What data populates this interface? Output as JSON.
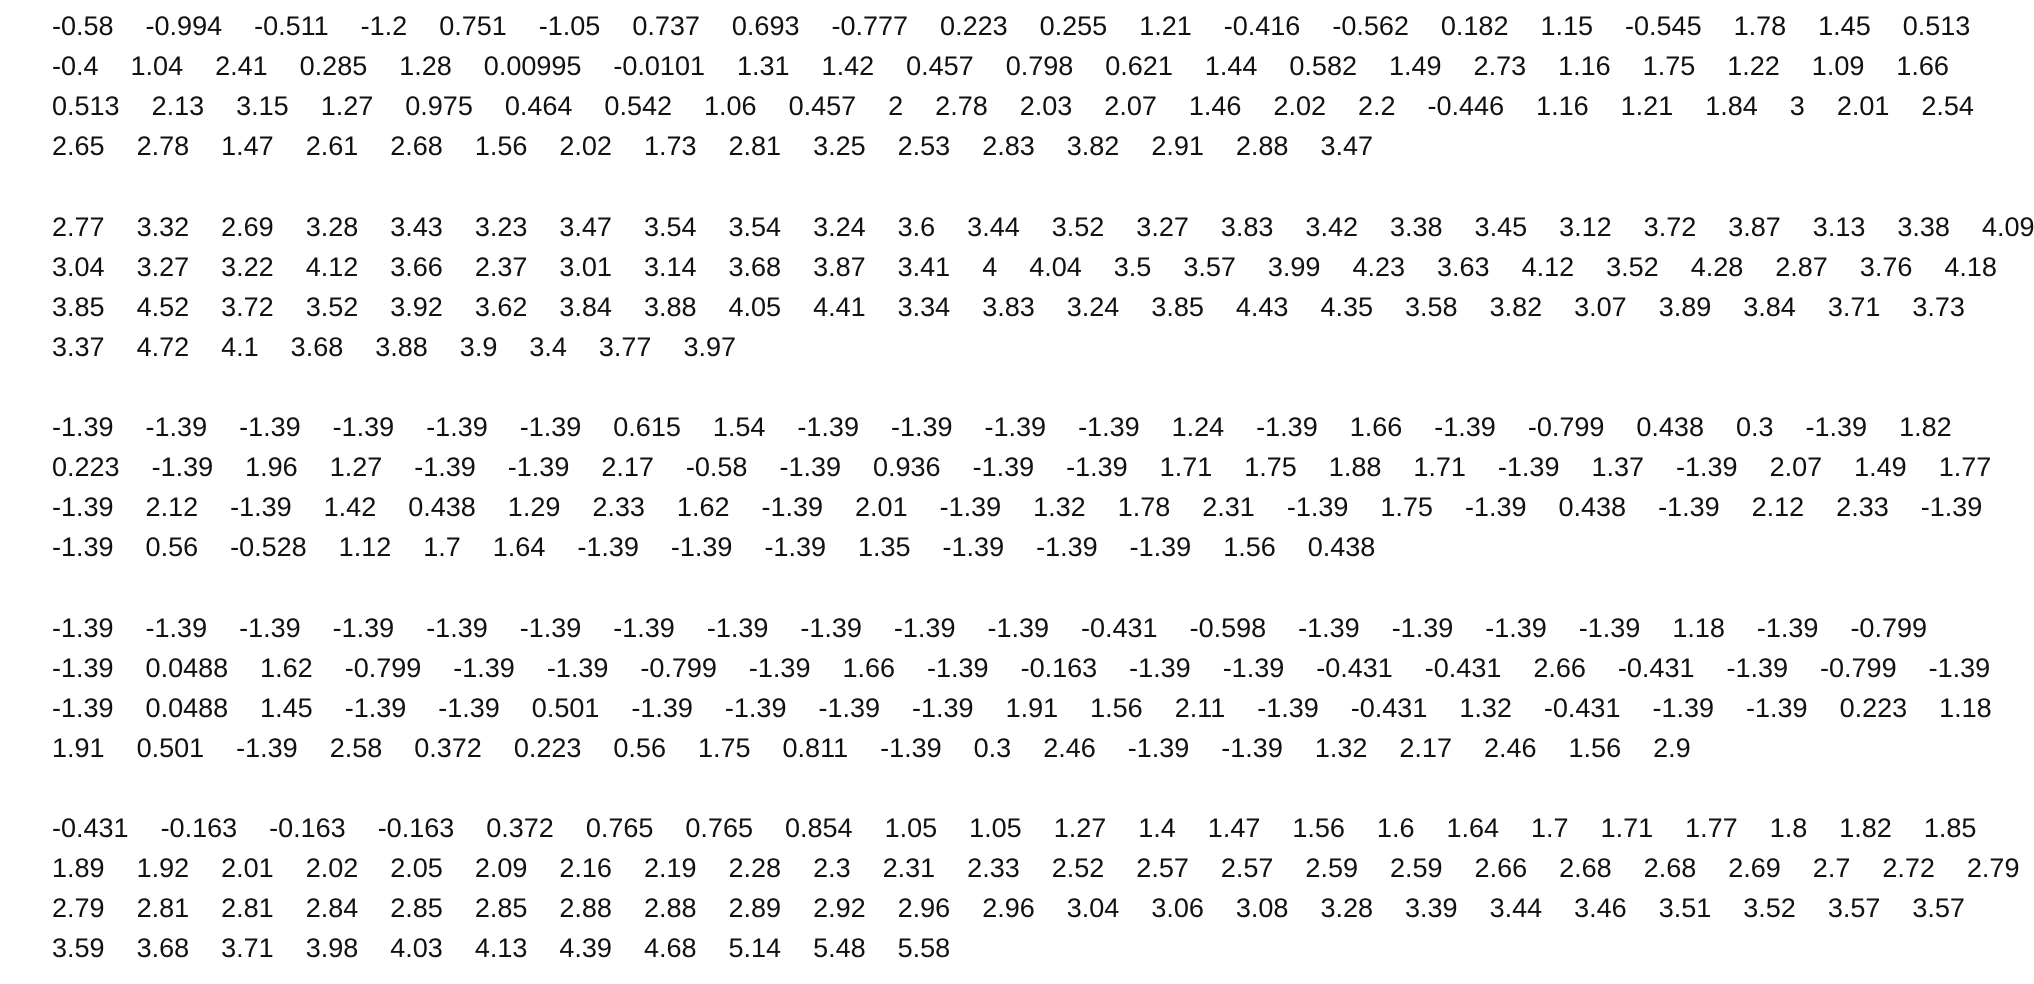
{
  "blocks": [
    {
      "lines": [
        [
          "-0.58",
          "-0.994",
          "-0.511",
          "-1.2",
          "0.751",
          "-1.05",
          "0.737",
          "0.693",
          "-0.777",
          "0.223",
          "0.255",
          "1.21",
          "-0.416",
          "-0.562",
          "0.182",
          "1.15",
          "-0.545",
          "1.78",
          "1.45",
          "0.513"
        ],
        [
          "-0.4",
          "1.04",
          "2.41",
          "0.285",
          "1.28",
          "0.00995",
          "-0.0101",
          "1.31",
          "1.42",
          "0.457",
          "0.798",
          "0.621",
          "1.44",
          "0.582",
          "1.49",
          "2.73",
          "1.16",
          "1.75",
          "1.22",
          "1.09",
          "1.66"
        ],
        [
          "0.513",
          "2.13",
          "3.15",
          "1.27",
          "0.975",
          "0.464",
          "0.542",
          "1.06",
          "0.457",
          "2",
          "2.78",
          "2.03",
          "2.07",
          "1.46",
          "2.02",
          "2.2",
          "-0.446",
          "1.16",
          "1.21",
          "1.84",
          "3",
          "2.01",
          "2.54"
        ],
        [
          "2.65",
          "2.78",
          "1.47",
          "2.61",
          "2.68",
          "1.56",
          "2.02",
          "1.73",
          "2.81",
          "3.25",
          "2.53",
          "2.83",
          "3.82",
          "2.91",
          "2.88",
          "3.47"
        ]
      ]
    },
    {
      "lines": [
        [
          "2.77",
          "3.32",
          "2.69",
          "3.28",
          "3.43",
          "3.23",
          "3.47",
          "3.54",
          "3.54",
          "3.24",
          "3.6",
          "3.44",
          "3.52",
          "3.27",
          "3.83",
          "3.42",
          "3.38",
          "3.45",
          "3.12",
          "3.72",
          "3.87",
          "3.13",
          "3.38",
          "4.09"
        ],
        [
          "3.04",
          "3.27",
          "3.22",
          "4.12",
          "3.66",
          "2.37",
          "3.01",
          "3.14",
          "3.68",
          "3.87",
          "3.41",
          "4",
          "4.04",
          "3.5",
          "3.57",
          "3.99",
          "4.23",
          "3.63",
          "4.12",
          "3.52",
          "4.28",
          "2.87",
          "3.76",
          "4.18"
        ],
        [
          "3.85",
          "4.52",
          "3.72",
          "3.52",
          "3.92",
          "3.62",
          "3.84",
          "3.88",
          "4.05",
          "4.41",
          "3.34",
          "3.83",
          "3.24",
          "3.85",
          "4.43",
          "4.35",
          "3.58",
          "3.82",
          "3.07",
          "3.89",
          "3.84",
          "3.71",
          "3.73"
        ],
        [
          "3.37",
          "4.72",
          "4.1",
          "3.68",
          "3.88",
          "3.9",
          "3.4",
          "3.77",
          "3.97"
        ]
      ]
    },
    {
      "lines": [
        [
          "-1.39",
          "-1.39",
          "-1.39",
          "-1.39",
          "-1.39",
          "-1.39",
          "0.615",
          "1.54",
          "-1.39",
          "-1.39",
          "-1.39",
          "-1.39",
          "1.24",
          "-1.39",
          "1.66",
          "-1.39",
          "-0.799",
          "0.438",
          "0.3",
          "-1.39",
          "1.82"
        ],
        [
          "0.223",
          "-1.39",
          "1.96",
          "1.27",
          "-1.39",
          "-1.39",
          "2.17",
          "-0.58",
          "-1.39",
          "0.936",
          "-1.39",
          "-1.39",
          "1.71",
          "1.75",
          "1.88",
          "1.71",
          "-1.39",
          "1.37",
          "-1.39",
          "2.07",
          "1.49",
          "1.77"
        ],
        [
          "-1.39",
          "2.12",
          "-1.39",
          "1.42",
          "0.438",
          "1.29",
          "2.33",
          "1.62",
          "-1.39",
          "2.01",
          "-1.39",
          "1.32",
          "1.78",
          "2.31",
          "-1.39",
          "1.75",
          "-1.39",
          "0.438",
          "-1.39",
          "2.12",
          "2.33",
          "-1.39"
        ],
        [
          "-1.39",
          "0.56",
          "-0.528",
          "1.12",
          "1.7",
          "1.64",
          "-1.39",
          "-1.39",
          "-1.39",
          "1.35",
          "-1.39",
          "-1.39",
          "-1.39",
          "1.56",
          "0.438"
        ]
      ]
    },
    {
      "lines": [
        [
          "-1.39",
          "-1.39",
          "-1.39",
          "-1.39",
          "-1.39",
          "-1.39",
          "-1.39",
          "-1.39",
          "-1.39",
          "-1.39",
          "-1.39",
          "-0.431",
          "-0.598",
          "-1.39",
          "-1.39",
          "-1.39",
          "-1.39",
          "1.18",
          "-1.39",
          "-0.799"
        ],
        [
          "-1.39",
          "0.0488",
          "1.62",
          "-0.799",
          "-1.39",
          "-1.39",
          "-0.799",
          "-1.39",
          "1.66",
          "-1.39",
          "-0.163",
          "-1.39",
          "-1.39",
          "-0.431",
          "-0.431",
          "2.66",
          "-0.431",
          "-1.39",
          "-0.799",
          "-1.39"
        ],
        [
          "-1.39",
          "0.0488",
          "1.45",
          "-1.39",
          "-1.39",
          "0.501",
          "-1.39",
          "-1.39",
          "-1.39",
          "-1.39",
          "1.91",
          "1.56",
          "2.11",
          "-1.39",
          "-0.431",
          "1.32",
          "-0.431",
          "-1.39",
          "-1.39",
          "0.223",
          "1.18"
        ],
        [
          "1.91",
          "0.501",
          "-1.39",
          "2.58",
          "0.372",
          "0.223",
          "0.56",
          "1.75",
          "0.811",
          "-1.39",
          "0.3",
          "2.46",
          "-1.39",
          "-1.39",
          "1.32",
          "2.17",
          "2.46",
          "1.56",
          "2.9"
        ]
      ]
    },
    {
      "lines": [
        [
          "-0.431",
          "-0.163",
          "-0.163",
          "-0.163",
          "0.372",
          "0.765",
          "0.765",
          "0.854",
          "1.05",
          "1.05",
          "1.27",
          "1.4",
          "1.47",
          "1.56",
          "1.6",
          "1.64",
          "1.7",
          "1.71",
          "1.77",
          "1.8",
          "1.82",
          "1.85"
        ],
        [
          "1.89",
          "1.92",
          "2.01",
          "2.02",
          "2.05",
          "2.09",
          "2.16",
          "2.19",
          "2.28",
          "2.3",
          "2.31",
          "2.33",
          "2.52",
          "2.57",
          "2.57",
          "2.59",
          "2.59",
          "2.66",
          "2.68",
          "2.68",
          "2.69",
          "2.7",
          "2.72",
          "2.79"
        ],
        [
          "2.79",
          "2.81",
          "2.81",
          "2.84",
          "2.85",
          "2.85",
          "2.88",
          "2.88",
          "2.89",
          "2.92",
          "2.96",
          "2.96",
          "3.04",
          "3.06",
          "3.08",
          "3.28",
          "3.39",
          "3.44",
          "3.46",
          "3.51",
          "3.52",
          "3.57",
          "3.57"
        ],
        [
          "3.59",
          "3.68",
          "3.71",
          "3.98",
          "4.03",
          "4.13",
          "4.39",
          "4.68",
          "5.14",
          "5.48",
          "5.58"
        ]
      ]
    }
  ]
}
